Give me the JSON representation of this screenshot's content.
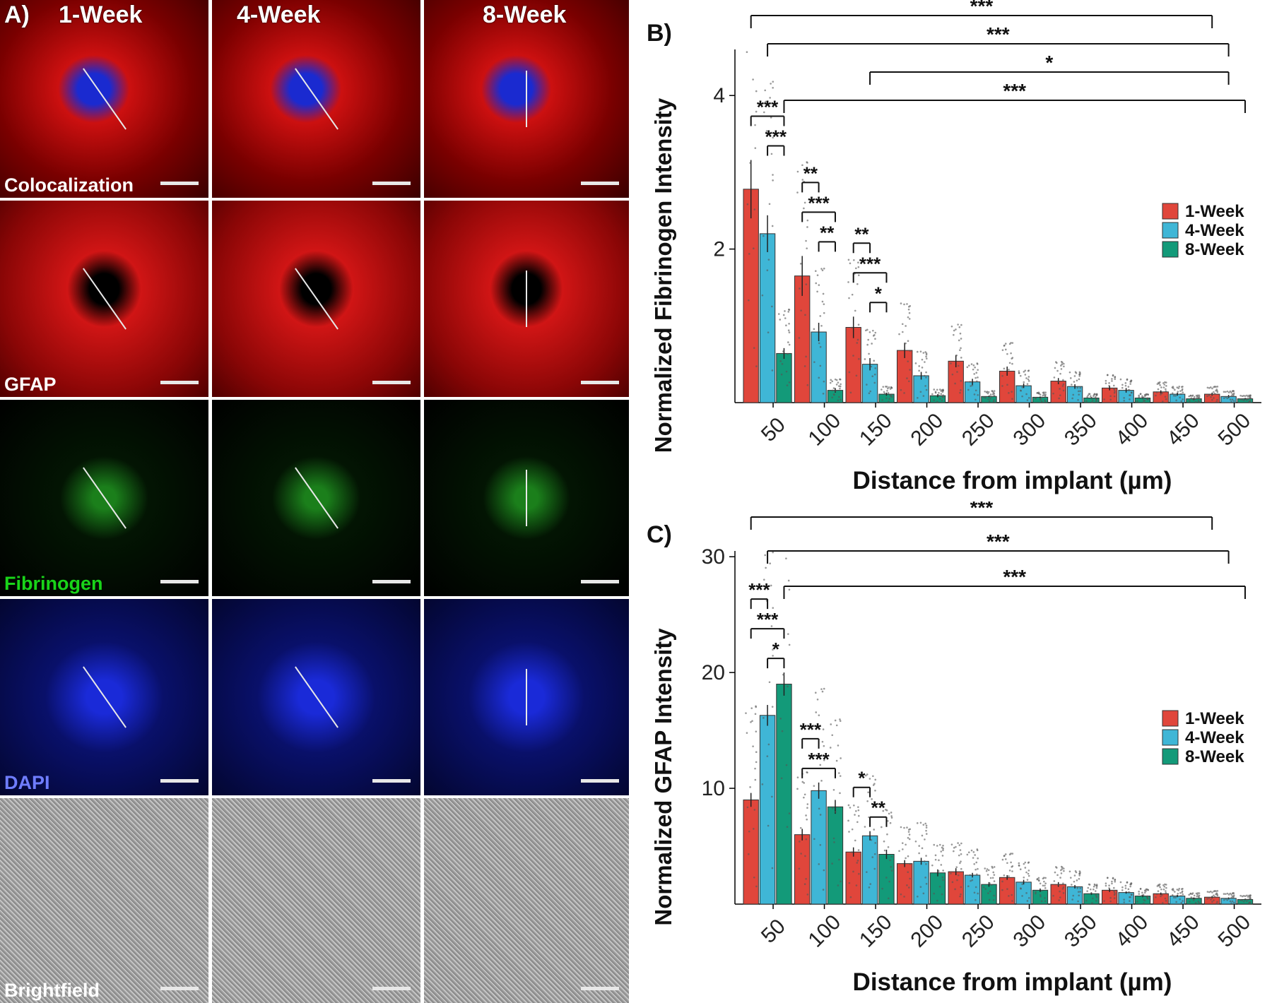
{
  "panel_a": {
    "letter": "A)",
    "columns": [
      "1-Week",
      "4-Week",
      "8-Week"
    ],
    "rows": [
      {
        "label": "Colocalization",
        "label_color": "#ffffff"
      },
      {
        "label": "GFAP",
        "label_color": "#ffffff"
      },
      {
        "label": "Fibrinogen",
        "label_color": "#19d419"
      },
      {
        "label": "DAPI",
        "label_color": "#6f7dff"
      },
      {
        "label": "Brightfield",
        "label_color": "#ffffff"
      }
    ]
  },
  "colors": {
    "week1": "#e0463b",
    "week4": "#3fb6d6",
    "week8": "#139a79"
  },
  "chart_data": [
    {
      "panel": "B)",
      "type": "bar",
      "xlabel": "Distance from implant (µm)",
      "ylabel": "Normalized Fibrinogen Intensity",
      "categories": [
        "50",
        "100",
        "150",
        "200",
        "250",
        "300",
        "350",
        "400",
        "450",
        "500"
      ],
      "ylim": [
        0,
        4.6
      ],
      "yticks": [
        2,
        4
      ],
      "series": [
        {
          "name": "1-Week",
          "values": [
            2.78,
            1.65,
            0.98,
            0.68,
            0.54,
            0.41,
            0.28,
            0.19,
            0.14,
            0.11
          ]
        },
        {
          "name": "4-Week",
          "values": [
            2.2,
            0.92,
            0.5,
            0.35,
            0.27,
            0.22,
            0.21,
            0.16,
            0.11,
            0.08
          ]
        },
        {
          "name": "8-Week",
          "values": [
            0.64,
            0.16,
            0.11,
            0.09,
            0.08,
            0.07,
            0.06,
            0.06,
            0.05,
            0.05
          ]
        }
      ],
      "errors": [
        [
          0.38,
          0.26,
          0.14,
          0.1,
          0.08,
          0.06,
          0.04,
          0.03,
          0.02,
          0.02
        ],
        [
          0.24,
          0.12,
          0.08,
          0.05,
          0.04,
          0.03,
          0.03,
          0.03,
          0.02,
          0.02
        ],
        [
          0.07,
          0.03,
          0.02,
          0.02,
          0.01,
          0.01,
          0.01,
          0.01,
          0.01,
          0.01
        ]
      ],
      "significance": [
        {
          "label": "***",
          "level": "top",
          "from": "1-Week@50",
          "to": "1-Week@500"
        },
        {
          "label": "***",
          "level": "top",
          "from": "4-Week@50",
          "to": "4-Week@500"
        },
        {
          "label": "*",
          "level": "top",
          "from": "4-Week@150",
          "to": "4-Week@500"
        },
        {
          "label": "***",
          "level": "top",
          "from": "8-Week@50",
          "to": "8-Week@500"
        },
        {
          "label": "***",
          "level": "local",
          "at": "50",
          "pair": "1-Week vs 8-Week"
        },
        {
          "label": "***",
          "level": "local",
          "at": "50",
          "pair": "4-Week vs 8-Week"
        },
        {
          "label": "**",
          "level": "local",
          "at": "100",
          "pair": "1-Week vs 4-Week"
        },
        {
          "label": "***",
          "level": "local",
          "at": "100",
          "pair": "1-Week vs 8-Week"
        },
        {
          "label": "**",
          "level": "local",
          "at": "100",
          "pair": "4-Week vs 8-Week"
        },
        {
          "label": "**",
          "level": "local",
          "at": "150",
          "pair": "1-Week vs 4-Week"
        },
        {
          "label": "***",
          "level": "local",
          "at": "150",
          "pair": "1-Week vs 8-Week"
        },
        {
          "label": "*",
          "level": "local",
          "at": "150",
          "pair": "4-Week vs 8-Week"
        }
      ],
      "legend": "right"
    },
    {
      "panel": "C)",
      "type": "bar",
      "xlabel": "Distance from implant (µm)",
      "ylabel": "Normalized GFAP Intensity",
      "categories": [
        "50",
        "100",
        "150",
        "200",
        "250",
        "300",
        "350",
        "400",
        "450",
        "500"
      ],
      "ylim": [
        0,
        30.5
      ],
      "yticks": [
        10,
        20,
        30
      ],
      "series": [
        {
          "name": "1-Week",
          "values": [
            9.0,
            6.0,
            4.5,
            3.5,
            2.8,
            2.3,
            1.7,
            1.2,
            0.9,
            0.6
          ]
        },
        {
          "name": "4-Week",
          "values": [
            16.3,
            9.8,
            5.9,
            3.7,
            2.5,
            1.9,
            1.5,
            1.0,
            0.7,
            0.5
          ]
        },
        {
          "name": "8-Week",
          "values": [
            19.0,
            8.4,
            4.3,
            2.7,
            1.7,
            1.2,
            0.9,
            0.7,
            0.5,
            0.4
          ]
        }
      ],
      "errors": [
        [
          0.6,
          0.5,
          0.4,
          0.3,
          0.3,
          0.2,
          0.2,
          0.15,
          0.1,
          0.1
        ],
        [
          0.9,
          0.7,
          0.4,
          0.3,
          0.2,
          0.2,
          0.15,
          0.1,
          0.1,
          0.08
        ],
        [
          1.0,
          0.6,
          0.4,
          0.3,
          0.2,
          0.15,
          0.1,
          0.1,
          0.08,
          0.06
        ]
      ],
      "significance": [
        {
          "label": "***",
          "level": "top",
          "from": "1-Week@50",
          "to": "1-Week@500"
        },
        {
          "label": "***",
          "level": "top",
          "from": "4-Week@50",
          "to": "4-Week@500"
        },
        {
          "label": "***",
          "level": "top",
          "from": "8-Week@50",
          "to": "8-Week@500"
        },
        {
          "label": "***",
          "level": "local",
          "at": "50",
          "pair": "1-Week vs 4-Week"
        },
        {
          "label": "***",
          "level": "local",
          "at": "50",
          "pair": "1-Week vs 8-Week"
        },
        {
          "label": "*",
          "level": "local",
          "at": "50",
          "pair": "4-Week vs 8-Week"
        },
        {
          "label": "***",
          "level": "local",
          "at": "100",
          "pair": "1-Week vs 4-Week"
        },
        {
          "label": "***",
          "level": "local",
          "at": "100",
          "pair": "1-Week vs 8-Week"
        },
        {
          "label": "*",
          "level": "local",
          "at": "150",
          "pair": "1-Week vs 4-Week"
        },
        {
          "label": "**",
          "level": "local",
          "at": "150",
          "pair": "4-Week vs 8-Week"
        }
      ],
      "legend": "right"
    }
  ]
}
